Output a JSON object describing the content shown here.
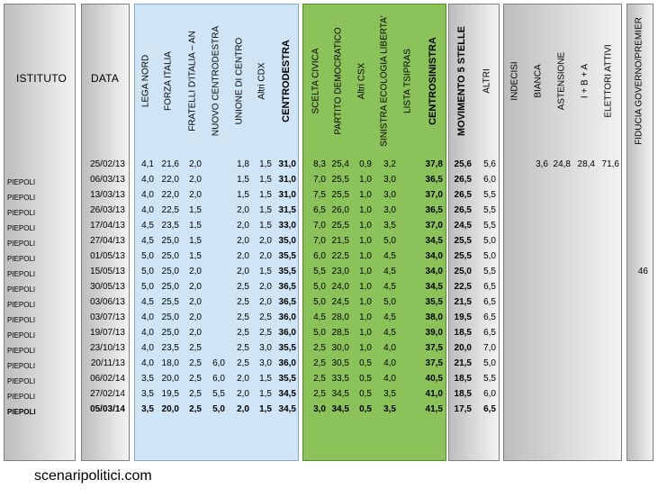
{
  "headers": {
    "istituto": "ISTITUTO",
    "data": "DATA",
    "columns": [
      "LEGA NORD",
      "FORZA ITALIA",
      "FRATELLI D'ITALIA – AN",
      "NUOVO CENTRODESTRA",
      "UNIONE DI CENTRO",
      "Altri CDX",
      "CENTRODESTRA",
      "SCELTA CIVICA",
      "PARTITO DEMOCRATICO",
      "Altri CSX",
      "SINISTRA ECOLOGIA LIBERTA'",
      "LISTA TSIPRAS",
      "CENTROSINISTRA",
      "MOVIMENTO 5 STELLE",
      "ALTRI",
      "INDECISI",
      "BIANCA",
      "ASTENSIONE",
      "I + B + A",
      "ELETTORI ATTIVI",
      "FIDUCIA GOVERNO/PREMIER"
    ]
  },
  "rows": [
    {
      "istituto": "",
      "data": "25/02/13",
      "v": [
        "4,1",
        "21,6",
        "2,0",
        "",
        "1,8",
        "1,5",
        "31,0",
        "8,3",
        "25,4",
        "0,9",
        "3,2",
        "",
        "37,8",
        "25,6",
        "5,6",
        "",
        "3,6",
        "24,8",
        "28,4",
        "71,6",
        ""
      ]
    },
    {
      "istituto": "PIEPOLI",
      "data": "06/03/13",
      "v": [
        "4,0",
        "22,0",
        "2,0",
        "",
        "1,5",
        "1,5",
        "31,0",
        "7,0",
        "25,5",
        "1,0",
        "3,0",
        "",
        "36,5",
        "26,5",
        "6,0",
        "",
        "",
        "",
        "",
        "",
        ""
      ]
    },
    {
      "istituto": "PIEPOLI",
      "data": "13/03/13",
      "v": [
        "4,0",
        "22,0",
        "2,0",
        "",
        "1,5",
        "1,5",
        "31,0",
        "7,5",
        "25,5",
        "1,0",
        "3,0",
        "",
        "37,0",
        "26,5",
        "5,5",
        "",
        "",
        "",
        "",
        "",
        ""
      ]
    },
    {
      "istituto": "PIEPOLI",
      "data": "26/03/13",
      "v": [
        "4,0",
        "22,5",
        "1,5",
        "",
        "2,0",
        "1,5",
        "31,5",
        "6,5",
        "26,0",
        "1,0",
        "3,0",
        "",
        "36,5",
        "26,5",
        "5,5",
        "",
        "",
        "",
        "",
        "",
        ""
      ]
    },
    {
      "istituto": "PIEPOLI",
      "data": "17/04/13",
      "v": [
        "4,5",
        "23,5",
        "1,5",
        "",
        "2,0",
        "1,5",
        "33,0",
        "7,0",
        "25,5",
        "1,0",
        "3,5",
        "",
        "37,0",
        "24,5",
        "5,5",
        "",
        "",
        "",
        "",
        "",
        ""
      ]
    },
    {
      "istituto": "PIEPOLI",
      "data": "27/04/13",
      "v": [
        "4,5",
        "25,0",
        "1,5",
        "",
        "2,0",
        "2,0",
        "35,0",
        "7,0",
        "21,5",
        "1,0",
        "5,0",
        "",
        "34,5",
        "25,5",
        "5,0",
        "",
        "",
        "",
        "",
        "",
        ""
      ]
    },
    {
      "istituto": "PIEPOLI",
      "data": "01/05/13",
      "v": [
        "5,0",
        "25,0",
        "1,5",
        "",
        "2,0",
        "2,0",
        "35,5",
        "6,0",
        "22,5",
        "1,0",
        "4,5",
        "",
        "34,0",
        "25,5",
        "5,0",
        "",
        "",
        "",
        "",
        "",
        ""
      ]
    },
    {
      "istituto": "PIEPOLI",
      "data": "15/05/13",
      "v": [
        "5,0",
        "25,0",
        "2,0",
        "",
        "2,0",
        "1,5",
        "35,5",
        "5,5",
        "23,0",
        "1,0",
        "4,5",
        "",
        "34,0",
        "25,0",
        "5,5",
        "",
        "",
        "",
        "",
        "",
        "46"
      ]
    },
    {
      "istituto": "PIEPOLI",
      "data": "30/05/13",
      "v": [
        "5,0",
        "25,0",
        "2,0",
        "",
        "2,5",
        "2,0",
        "36,5",
        "5,0",
        "24,0",
        "1,0",
        "4,5",
        "",
        "34,5",
        "22,5",
        "6,5",
        "",
        "",
        "",
        "",
        "",
        ""
      ]
    },
    {
      "istituto": "PIEPOLI",
      "data": "03/06/13",
      "v": [
        "4,5",
        "25,5",
        "2,0",
        "",
        "2,5",
        "2,0",
        "36,5",
        "5,0",
        "24,5",
        "1,0",
        "5,0",
        "",
        "35,5",
        "21,5",
        "6,5",
        "",
        "",
        "",
        "",
        "",
        ""
      ]
    },
    {
      "istituto": "PIEPOLI",
      "data": "03/07/13",
      "v": [
        "4,0",
        "25,0",
        "2,0",
        "",
        "2,5",
        "2,5",
        "36,0",
        "4,5",
        "28,0",
        "1,0",
        "4,5",
        "",
        "38,0",
        "19,5",
        "6,5",
        "",
        "",
        "",
        "",
        "",
        ""
      ]
    },
    {
      "istituto": "PIEPOLI",
      "data": "19/07/13",
      "v": [
        "4,0",
        "25,0",
        "2,0",
        "",
        "2,5",
        "2,5",
        "36,0",
        "5,0",
        "28,5",
        "1,0",
        "4,5",
        "",
        "39,0",
        "18,5",
        "6,5",
        "",
        "",
        "",
        "",
        "",
        ""
      ]
    },
    {
      "istituto": "PIEPOLI",
      "data": "23/10/13",
      "v": [
        "4,0",
        "23,5",
        "2,5",
        "",
        "2,5",
        "3,0",
        "35,5",
        "2,5",
        "30,0",
        "1,0",
        "4,0",
        "",
        "37,5",
        "20,0",
        "7,0",
        "",
        "",
        "",
        "",
        "",
        ""
      ]
    },
    {
      "istituto": "PIEPOLI",
      "data": "20/11/13",
      "v": [
        "4,0",
        "18,0",
        "2,5",
        "6,0",
        "2,5",
        "3,0",
        "36,0",
        "2,5",
        "30,5",
        "0,5",
        "4,0",
        "",
        "37,5",
        "21,5",
        "5,0",
        "",
        "",
        "",
        "",
        "",
        ""
      ]
    },
    {
      "istituto": "PIEPOLI",
      "data": "06/02/14",
      "v": [
        "3,5",
        "20,0",
        "2,5",
        "6,0",
        "2,0",
        "1,5",
        "35,5",
        "2,5",
        "33,5",
        "0,5",
        "4,0",
        "",
        "40,5",
        "18,5",
        "5,5",
        "",
        "",
        "",
        "",
        "",
        ""
      ]
    },
    {
      "istituto": "PIEPOLI",
      "data": "27/02/14",
      "v": [
        "3,5",
        "19,5",
        "2,5",
        "5,5",
        "2,0",
        "1,5",
        "34,5",
        "2,5",
        "34,5",
        "0,5",
        "3,5",
        "",
        "41,0",
        "18,5",
        "6,0",
        "",
        "",
        "",
        "",
        "",
        ""
      ]
    },
    {
      "istituto": "PIEPOLI",
      "data": "05/03/14",
      "v": [
        "3,5",
        "20,0",
        "2,5",
        "5,0",
        "2,0",
        "1,5",
        "34,5",
        "3,0",
        "34,5",
        "0,5",
        "3,5",
        "",
        "41,5",
        "17,5",
        "6,5",
        "",
        "",
        "",
        "",
        "",
        ""
      ],
      "bold": true
    }
  ],
  "footer": "scenaripolitici.com",
  "colors": {
    "centrodestra_panel": "#cfe5f5",
    "centrosinistra_panel": "#8cc25a",
    "neutral_panel": "#d9d9d9"
  }
}
